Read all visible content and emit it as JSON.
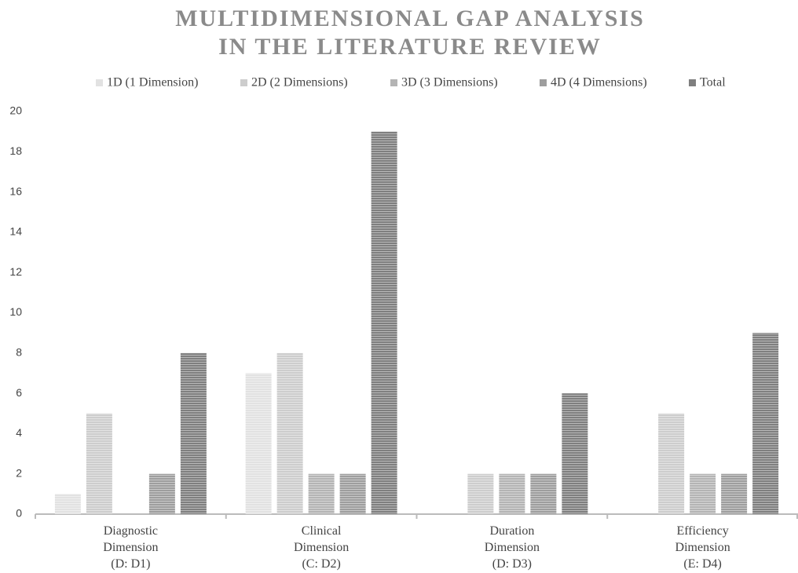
{
  "chart_data": {
    "type": "bar",
    "title": [
      "MULTIDIMENSIONAL GAP ANALYSIS",
      "IN THE LITERATURE REVIEW"
    ],
    "categories": [
      "Diagnostic\nDimension\n(D: D1)",
      "Clinical\nDimension\n(C: D2)",
      "Duration\nDimension\n(D: D3)",
      "Efficiency\nDimension\n(E: D4)"
    ],
    "series": [
      {
        "name": "1D (1 Dimension)",
        "color": "#e2e2e2",
        "values": [
          1,
          7,
          0,
          0
        ]
      },
      {
        "name": "2D (2 Dimensions)",
        "color": "#cdcdcd",
        "values": [
          5,
          8,
          2,
          5
        ]
      },
      {
        "name": "3D (3 Dimensions)",
        "color": "#b4b4b4",
        "values": [
          0,
          2,
          2,
          2
        ]
      },
      {
        "name": "4D (4 Dimensions)",
        "color": "#9e9e9e",
        "values": [
          2,
          2,
          2,
          2
        ]
      },
      {
        "name": "Total",
        "color": "#7f7f7f",
        "values": [
          8,
          19,
          6,
          9
        ]
      }
    ],
    "ylim": [
      0,
      20
    ],
    "yticks": [
      0,
      2,
      4,
      6,
      8,
      10,
      12,
      14,
      16,
      18,
      20
    ],
    "grid": false,
    "legend": "top"
  }
}
